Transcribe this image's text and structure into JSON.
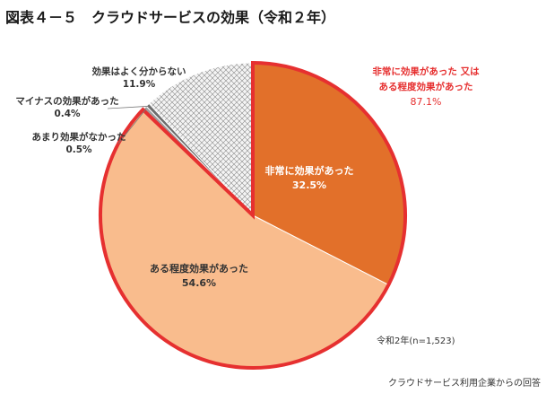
{
  "title": "図表４－５　クラウドサービスの効果（令和２年）",
  "colors": {
    "very_effective": "#e2702a",
    "somewhat_effective": "#f9bc8d",
    "no_effect": "#9e9e9e",
    "negative": "#6e6e6e",
    "unknown": "#f2f2f2",
    "highlight_border": "#e63030"
  },
  "chart_data": {
    "type": "pie",
    "title": "クラウドサービスの効果（令和２年）",
    "start_angle_deg": 0,
    "direction": "clockwise",
    "slices": [
      {
        "name": "非常に効果があった",
        "value": 32.5,
        "label_pct": "32.5%",
        "color": "#e2702a"
      },
      {
        "name": "ある程度効果があった",
        "value": 54.6,
        "label_pct": "54.6%",
        "color": "#f9bc8d"
      },
      {
        "name": "あまり効果がなかった",
        "value": 0.5,
        "label_pct": "0.5%",
        "color": "#9e9e9e"
      },
      {
        "name": "マイナスの効果があった",
        "value": 0.4,
        "label_pct": "0.4%",
        "color": "#6e6e6e"
      },
      {
        "name": "効果はよく分からない",
        "value": 11.9,
        "label_pct": "11.9%",
        "color": "#f2f2f2",
        "pattern": "crosshatch"
      }
    ],
    "highlight": {
      "line1": "非常に効果があった 又は",
      "line2": "ある程度効果があった",
      "pct": "87.1%"
    },
    "series_note": "令和2年(n=1,523)",
    "source": "クラウドサービス利用企業からの回答"
  }
}
